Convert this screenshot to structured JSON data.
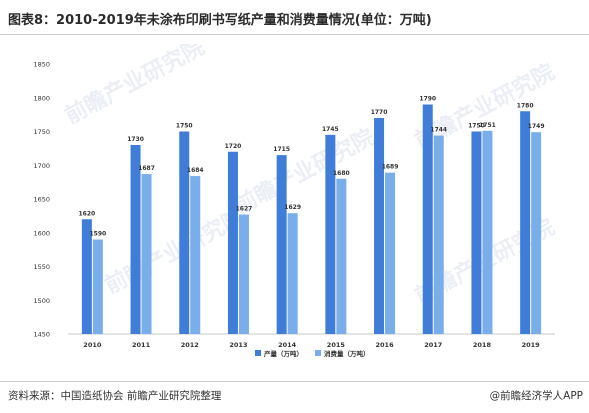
{
  "title": "图表8：2010-2019年未涂布印刷书写纸产量和消费量情况(单位：万吨)",
  "footer": {
    "source": "资料来源：中国造纸协会 前瞻产业研究院整理",
    "brand": "@前瞻经济学人APP"
  },
  "watermark": "前瞻产业研究院",
  "colors": {
    "production": "#3f7dd9",
    "consumption": "#7aaeea"
  },
  "chart_data": {
    "type": "bar",
    "categories": [
      "2010",
      "2011",
      "2012",
      "2013",
      "2014",
      "2015",
      "2016",
      "2017",
      "2018",
      "2019"
    ],
    "series": [
      {
        "name": "产量（万吨）",
        "values": [
          1620,
          1730,
          1750,
          1720,
          1715,
          1745,
          1770,
          1790,
          1750,
          1780
        ]
      },
      {
        "name": "消费量（万吨）",
        "values": [
          1590,
          1687,
          1684,
          1627,
          1629,
          1680,
          1689,
          1744,
          1751,
          1749
        ]
      }
    ],
    "ylim": [
      1450,
      1850
    ],
    "yticks": [
      1450,
      1500,
      1550,
      1600,
      1650,
      1700,
      1750,
      1800,
      1850
    ],
    "grid": false,
    "legend_position": "bottom-center"
  }
}
